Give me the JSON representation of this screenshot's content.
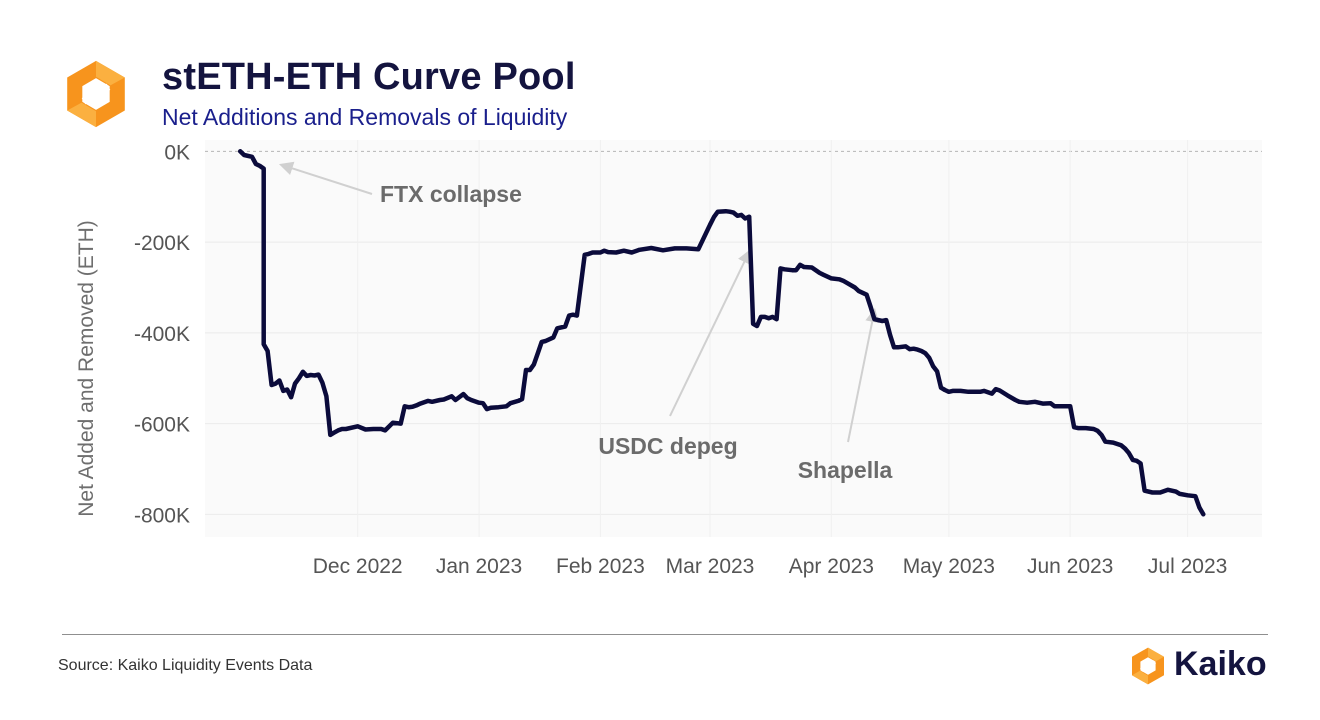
{
  "colors": {
    "title": "#14143f",
    "subtitle": "#1a1f8c",
    "line": "#0b0b3b",
    "annotation": "#6b6b6b",
    "logo_orange": "#f7941d",
    "logo_light": "#fbb040"
  },
  "header": {
    "title": "stETH-ETH Curve Pool",
    "subtitle": "Net Additions and Removals of Liquidity",
    "logo_icon": "kaiko-hexagon-icon"
  },
  "footer": {
    "source": "Source: Kaiko Liquidity Events Data",
    "brand": "Kaiko",
    "brand_icon": "kaiko-hexagon-icon"
  },
  "chart_data": {
    "type": "line",
    "title": "stETH-ETH Curve Pool",
    "subtitle": "Net Additions and Removals of Liquidity",
    "xlabel": "",
    "ylabel": "Net Added and Removed (ETH)",
    "ylim": [
      -850000,
      25000
    ],
    "xlim": [
      "2022-10-23",
      "2023-07-20"
    ],
    "y_ticks": [
      0,
      -200000,
      -400000,
      -600000,
      -800000
    ],
    "y_tick_labels": [
      "0K",
      "-200K",
      "-400K",
      "-600K",
      "-800K"
    ],
    "x_ticks": [
      "2022-12-01",
      "2023-01-01",
      "2023-02-01",
      "2023-03-01",
      "2023-04-01",
      "2023-05-01",
      "2023-06-01",
      "2023-07-01"
    ],
    "x_tick_labels": [
      "Dec 2022",
      "Jan 2023",
      "Feb 2023",
      "Mar 2023",
      "Apr 2023",
      "May 2023",
      "Jun 2023",
      "Jul 2023"
    ],
    "grid": true,
    "series": [
      {
        "x": [
          "2022-11-01",
          "2022-11-02",
          "2022-11-04",
          "2022-11-05",
          "2022-11-06",
          "2022-11-07",
          "2022-11-07",
          "2022-11-08",
          "2022-11-09",
          "2022-11-10",
          "2022-11-11",
          "2022-11-12",
          "2022-11-13",
          "2022-11-14",
          "2022-11-15",
          "2022-11-16",
          "2022-11-17",
          "2022-11-18",
          "2022-11-19",
          "2022-11-20",
          "2022-11-21",
          "2022-11-22",
          "2022-11-23",
          "2022-11-24",
          "2022-11-25",
          "2022-11-26",
          "2022-11-27",
          "2022-11-28",
          "2022-12-01",
          "2022-12-03",
          "2022-12-05",
          "2022-12-07",
          "2022-12-08",
          "2022-12-10",
          "2022-12-12",
          "2022-12-13",
          "2022-12-14",
          "2022-12-15",
          "2022-12-16",
          "2022-12-17",
          "2022-12-19",
          "2022-12-20",
          "2022-12-22",
          "2022-12-23",
          "2022-12-25",
          "2022-12-26",
          "2022-12-28",
          "2022-12-29",
          "2022-12-30",
          "2023-01-01",
          "2023-01-02",
          "2023-01-03",
          "2023-01-04",
          "2023-01-06",
          "2023-01-08",
          "2023-01-09",
          "2023-01-11",
          "2023-01-12",
          "2023-01-13",
          "2023-01-14",
          "2023-01-15",
          "2023-01-16",
          "2023-01-17",
          "2023-01-18",
          "2023-01-20",
          "2023-01-21",
          "2023-01-23",
          "2023-01-24",
          "2023-01-25",
          "2023-01-26",
          "2023-01-28",
          "2023-01-29",
          "2023-01-30",
          "2023-02-01",
          "2023-02-02",
          "2023-02-03",
          "2023-02-05",
          "2023-02-07",
          "2023-02-09",
          "2023-02-11",
          "2023-02-14",
          "2023-02-17",
          "2023-02-20",
          "2023-02-23",
          "2023-02-26",
          "2023-03-01",
          "2023-03-02",
          "2023-03-03",
          "2023-03-05",
          "2023-03-06",
          "2023-03-07",
          "2023-03-08",
          "2023-03-09",
          "2023-03-10",
          "2023-03-11",
          "2023-03-12",
          "2023-03-13",
          "2023-03-14",
          "2023-03-15",
          "2023-03-16",
          "2023-03-17",
          "2023-03-18",
          "2023-03-19",
          "2023-03-20",
          "2023-03-22",
          "2023-03-23",
          "2023-03-24",
          "2023-03-25",
          "2023-03-27",
          "2023-03-29",
          "2023-03-30",
          "2023-04-01",
          "2023-04-03",
          "2023-04-04",
          "2023-04-05",
          "2023-04-07",
          "2023-04-08",
          "2023-04-10",
          "2023-04-11",
          "2023-04-12",
          "2023-04-14",
          "2023-04-15",
          "2023-04-16",
          "2023-04-17",
          "2023-04-18",
          "2023-04-20",
          "2023-04-21",
          "2023-04-22",
          "2023-04-23",
          "2023-04-24",
          "2023-04-25",
          "2023-04-26",
          "2023-04-27",
          "2023-04-28",
          "2023-04-29",
          "2023-04-30",
          "2023-05-01",
          "2023-05-02",
          "2023-05-04",
          "2023-05-06",
          "2023-05-08",
          "2023-05-09",
          "2023-05-10",
          "2023-05-12",
          "2023-05-13",
          "2023-05-14",
          "2023-05-16",
          "2023-05-18",
          "2023-05-19",
          "2023-05-21",
          "2023-05-23",
          "2023-05-25",
          "2023-05-27",
          "2023-05-28",
          "2023-05-30",
          "2023-05-31",
          "2023-06-01",
          "2023-06-02",
          "2023-06-03",
          "2023-06-05",
          "2023-06-07",
          "2023-06-08",
          "2023-06-09",
          "2023-06-10",
          "2023-06-12",
          "2023-06-14",
          "2023-06-15",
          "2023-06-16",
          "2023-06-17",
          "2023-06-18",
          "2023-06-19",
          "2023-06-20",
          "2023-06-22",
          "2023-06-24",
          "2023-06-26",
          "2023-06-28",
          "2023-06-29",
          "2023-07-01",
          "2023-07-03",
          "2023-07-04",
          "2023-07-05"
        ],
        "y": [
          0,
          -8000,
          -12000,
          -28000,
          -32000,
          -38000,
          -425000,
          -440000,
          -515000,
          -512000,
          -505000,
          -528000,
          -525000,
          -542000,
          -512000,
          -500000,
          -486000,
          -495000,
          -493000,
          -494000,
          -492000,
          -510000,
          -540000,
          -625000,
          -620000,
          -615000,
          -612000,
          -612000,
          -606000,
          -613000,
          -612000,
          -612000,
          -615000,
          -598000,
          -600000,
          -562000,
          -564000,
          -563000,
          -560000,
          -556000,
          -550000,
          -552000,
          -548000,
          -547000,
          -540000,
          -548000,
          -535000,
          -544000,
          -548000,
          -554000,
          -555000,
          -568000,
          -565000,
          -564000,
          -562000,
          -555000,
          -550000,
          -546000,
          -482000,
          -482000,
          -470000,
          -445000,
          -420000,
          -418000,
          -410000,
          -390000,
          -386000,
          -362000,
          -360000,
          -362000,
          -228000,
          -226000,
          -223000,
          -223000,
          -219000,
          -222000,
          -223000,
          -219000,
          -223000,
          -217000,
          -213000,
          -218000,
          -214000,
          -214000,
          -216000,
          -162000,
          -145000,
          -133000,
          -132000,
          -133000,
          -135000,
          -142000,
          -140000,
          -148000,
          -144000,
          -380000,
          -385000,
          -365000,
          -365000,
          -368000,
          -365000,
          -370000,
          -258000,
          -260000,
          -262000,
          -262000,
          -250000,
          -255000,
          -256000,
          -268000,
          -272000,
          -280000,
          -282000,
          -285000,
          -290000,
          -300000,
          -308000,
          -316000,
          -342000,
          -370000,
          -374000,
          -372000,
          -405000,
          -432000,
          -432000,
          -430000,
          -436000,
          -435000,
          -437000,
          -440000,
          -445000,
          -455000,
          -474000,
          -485000,
          -521000,
          -526000,
          -530000,
          -528000,
          -528000,
          -530000,
          -530000,
          -530000,
          -528000,
          -534000,
          -524000,
          -527000,
          -538000,
          -548000,
          -552000,
          -554000,
          -552000,
          -556000,
          -555000,
          -562000,
          -562000,
          -562000,
          -562000,
          -608000,
          -610000,
          -610000,
          -612000,
          -616000,
          -625000,
          -640000,
          -642000,
          -648000,
          -655000,
          -665000,
          -680000,
          -682000,
          -688000,
          -748000,
          -752000,
          -752000,
          -746000,
          -750000,
          -755000,
          -758000,
          -760000,
          -785000,
          -800000
        ]
      }
    ],
    "annotations": [
      {
        "text": "FTX collapse",
        "date": "2022-11-08",
        "value": -30000
      },
      {
        "text": "USDC depeg",
        "date": "2023-03-11",
        "value": -195000
      },
      {
        "text": "Shapella",
        "date": "2023-04-12",
        "value": -325000
      }
    ]
  }
}
